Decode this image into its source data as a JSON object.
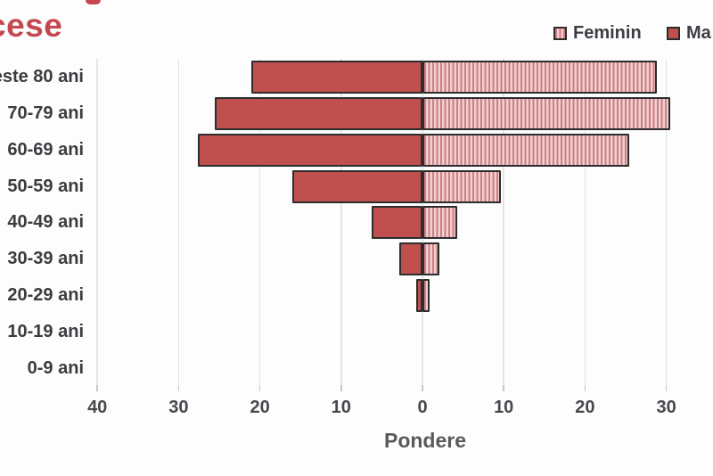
{
  "header": {
    "title_fragment": "cese",
    "title_color": "#c54850"
  },
  "legend": {
    "items": [
      {
        "label": "Feminin",
        "swatch": "striped"
      },
      {
        "label": "Ma",
        "swatch": "solid"
      }
    ]
  },
  "chart_data": {
    "type": "bar",
    "subtype": "population-pyramid",
    "orientation": "horizontal",
    "title_visible_fragment": "cese",
    "xlabel": "Pondere",
    "categories": [
      "este 80 ani",
      "70-79 ani",
      "60-69 ani",
      "50-59 ani",
      "40-49 ani",
      "30-39 ani",
      "20-29 ani",
      "10-19 ani",
      "0-9 ani"
    ],
    "series": [
      {
        "name": "Masculin",
        "visible_legend_label": "Ma",
        "side": "left",
        "style": "solid",
        "color": "#c0504d",
        "values": [
          21.0,
          25.5,
          27.6,
          16.0,
          6.3,
          2.8,
          0.8,
          0,
          0
        ]
      },
      {
        "name": "Feminin",
        "visible_legend_label": "Feminin",
        "side": "right",
        "style": "striped",
        "stripe_color_dark": "#cf7d81",
        "stripe_color_light": "#f2d0d1",
        "values": [
          28.8,
          30.5,
          25.4,
          9.6,
          4.3,
          2.1,
          0.9,
          0,
          0
        ]
      }
    ],
    "x_tick_labels": [
      "40",
      "30",
      "20",
      "10",
      "0",
      "10",
      "20",
      "30"
    ],
    "x_tick_values": [
      -40,
      -30,
      -20,
      -10,
      0,
      10,
      20,
      30
    ],
    "xlim": [
      -42,
      35
    ],
    "grid": true,
    "legend_position": "top-right",
    "bar_border_color": "#2d2d2d"
  }
}
